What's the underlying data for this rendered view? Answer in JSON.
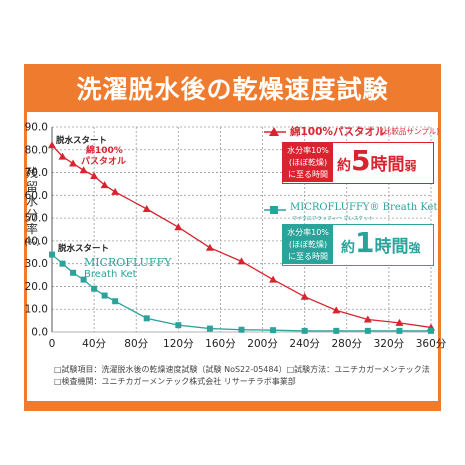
{
  "header": {
    "title": "洗濯脱水後の乾燥速度試験"
  },
  "axes": {
    "ylabel_lines": [
      "残",
      "留",
      "水",
      "分",
      "率",
      "(%)"
    ],
    "yticks": [
      "0.0",
      "10.0",
      "20.0",
      "30.0",
      "40.0",
      "50.0",
      "60.0",
      "70.0",
      "80.0",
      "90.0"
    ],
    "xticks": [
      "0",
      "40分",
      "80分",
      "120分",
      "160分",
      "200分",
      "240分",
      "280分",
      "320分",
      "360分"
    ]
  },
  "annotations": {
    "start_red": "脱水スタート",
    "start_teal": "脱水スタート",
    "red_brand_line1": "綿100%",
    "red_brand_line2": "パスタオル",
    "teal_brand_line1": "MICROFLUFFY",
    "teal_brand_line2": "Breath Ket"
  },
  "legend": {
    "red": {
      "title": "綿100%パスタオル",
      "title_note": "(比較品サンプル)",
      "box_lines": [
        "水分率10%",
        "(ほぼ乾燥)",
        "に至る時間"
      ],
      "result_prefix": "約",
      "result_number": "5",
      "result_unit": "時間",
      "result_suffix": "弱"
    },
    "teal": {
      "title": "MICROFLUFFY® Breath Ket",
      "subtitle": "マイクロフラッフィー ブレスケット",
      "box_lines": [
        "水分率10%",
        "(ほぼ乾燥)",
        "に至る時間"
      ],
      "result_prefix": "約",
      "result_number": "1",
      "result_unit": "時間",
      "result_suffix": "強"
    }
  },
  "footer": {
    "line1": "□試験項目：洗濯脱水後の乾燥速度試験（試験 NoS22-05484）□試験方法：ユニチカガーメンテック法",
    "line2": "□検査機関：ユニチカガーメンテック株式会社 リサーチラボ事業部"
  },
  "colors": {
    "accent": "#ef7b2e",
    "red": "#d9232f",
    "teal": "#2aa39b",
    "grid": "#9a9a9a"
  },
  "chart_data": {
    "type": "line",
    "xlabel": "",
    "ylabel": "残留水分率(%)",
    "xlim": [
      0,
      360
    ],
    "ylim": [
      0,
      90
    ],
    "x_ticks": [
      0,
      40,
      80,
      120,
      160,
      200,
      240,
      280,
      320,
      360
    ],
    "y_ticks": [
      0,
      10,
      20,
      30,
      40,
      50,
      60,
      70,
      80,
      90
    ],
    "grid": true,
    "series": [
      {
        "name": "綿100%パスタオル",
        "color": "#d9232f",
        "marker": "triangle",
        "x": [
          0,
          10,
          20,
          30,
          40,
          50,
          60,
          90,
          120,
          150,
          180,
          210,
          240,
          270,
          300,
          330,
          360
        ],
        "y": [
          82,
          77,
          74,
          71,
          68.5,
          64.5,
          61.5,
          54,
          46,
          37,
          31,
          23,
          15.5,
          9.5,
          5.5,
          4,
          2
        ]
      },
      {
        "name": "MICROFLUFFY® Breath Ket",
        "color": "#2aa39b",
        "marker": "square",
        "x": [
          0,
          10,
          20,
          30,
          40,
          50,
          60,
          90,
          120,
          150,
          180,
          210,
          240,
          270,
          300,
          330,
          360
        ],
        "y": [
          34,
          30,
          26,
          23,
          19,
          16,
          13.5,
          6,
          3,
          1.5,
          1,
          0.8,
          0.5,
          0.5,
          0.5,
          0.5,
          0.5
        ]
      }
    ]
  }
}
